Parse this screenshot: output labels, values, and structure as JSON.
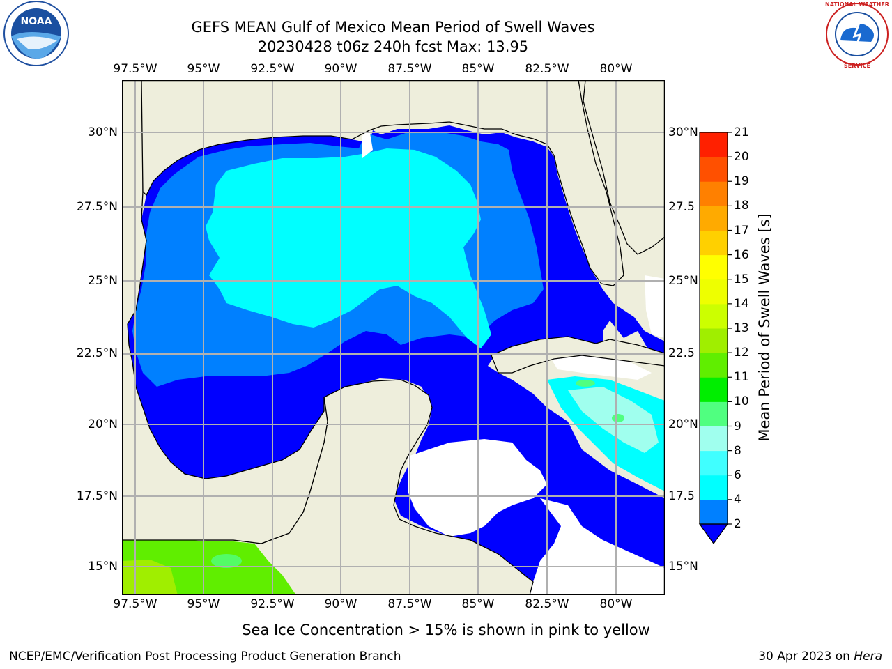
{
  "header": {
    "title_line1": "GEFS MEAN Gulf of Mexico Mean Period of Swell Waves",
    "title_line2": "20230428 t06z 240h fcst   Max: 13.95"
  },
  "map": {
    "lon_ticks_top": [
      "97.5°W",
      "95°W",
      "92.5°W",
      "90°W",
      "87.5°W",
      "85°W",
      "82.5°W",
      "80°W"
    ],
    "lon_ticks_bottom": [
      "97.5°W",
      "95°W",
      "92.5°W",
      "90°W",
      "87.5°W",
      "85°W",
      "82.5°W",
      "80°W"
    ],
    "lat_ticks_left": [
      "30°N",
      "27.5°N",
      "25°N",
      "22.5°N",
      "20°N",
      "17.5°N",
      "15°N"
    ],
    "lat_ticks_right": [
      "30°N",
      "27.5",
      "25°N",
      "22.5",
      "20°N",
      "17.5",
      "15°N"
    ],
    "land_color": "#eeeedc",
    "grid_color": "#b0b0b0"
  },
  "colorbar": {
    "title": "Mean Period of Swell Waves [s]",
    "levels": [
      "2",
      "4",
      "6",
      "8",
      "9",
      "10",
      "11",
      "12",
      "13",
      "14",
      "15",
      "16",
      "17",
      "18",
      "19",
      "20",
      "21"
    ],
    "colors": [
      "#0000ff",
      "#0080ff",
      "#00ffff",
      "#40ffff",
      "#a0ffee",
      "#50ff80",
      "#00ee00",
      "#60ee00",
      "#a0ee00",
      "#ccff00",
      "#eeff00",
      "#ffff00",
      "#ffd000",
      "#ffaa00",
      "#ff8000",
      "#ff5000",
      "#ff2000",
      "#ff0000"
    ]
  },
  "logos": {
    "left": "NOAA",
    "right": "NATIONAL WEATHER SERVICE"
  },
  "note": "Sea Ice Concentration > 15% is shown in pink to yellow",
  "footer": {
    "left": "NCEP/EMC/Verification Post Processing Product Generation Branch",
    "right_date": "30 Apr 2023 on ",
    "right_machine": "Hera"
  }
}
